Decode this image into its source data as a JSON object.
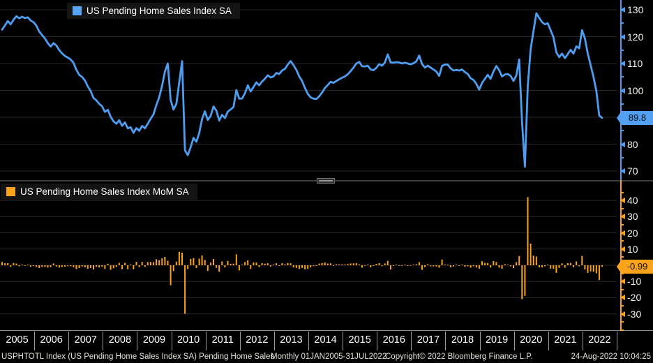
{
  "colors": {
    "background": "#000000",
    "line_blue": "#4e9df0",
    "bar_orange": "#fba31b",
    "grid": "#282828",
    "axis_text": "#f4f1e8",
    "badge_text_dark": "#0a0f14"
  },
  "top_panel": {
    "legend": "US Pending Home Sales Index SA"
  },
  "bottom_panel": {
    "legend": "US Pending Home Sales Index MoM SA"
  },
  "footer": {
    "description": "USPHTOTL Index (US Pending Home Sales Index SA) Pending Home Sales",
    "range": "Monthly 01JAN2005-31JUL2022",
    "copyright": "Copyright© 2022 Bloomberg Finance L.P.",
    "timestamp": "24-Aug-2022 10:04:25"
  },
  "x_years": [
    "2005",
    "2006",
    "2007",
    "2008",
    "2009",
    "2010",
    "2011",
    "2012",
    "2013",
    "2014",
    "2015",
    "2016",
    "2017",
    "2018",
    "2019",
    "2020",
    "2021",
    "2022"
  ],
  "chart_data": [
    {
      "type": "line",
      "title": "US Pending Home Sales Index SA",
      "x_start": "2005-01",
      "x_end": "2022-07",
      "frequency": "monthly",
      "axis_ticks": [
        130,
        120,
        110,
        100,
        90,
        80,
        70
      ],
      "ylim": [
        66.5,
        133.6
      ],
      "minor_tick_step": 5,
      "grid": true,
      "legend_position": "top-left",
      "last_label": "89.8",
      "color": "#4e9df0",
      "values": [
        122.6,
        124.2,
        125.8,
        124.6,
        126.3,
        127.6,
        126.8,
        127.4,
        126.9,
        127.2,
        126.0,
        125.4,
        124.1,
        121.9,
        120.6,
        119.3,
        117.6,
        116.3,
        117.6,
        116.7,
        115.0,
        113.8,
        112.8,
        112.2,
        111.5,
        110.2,
        107.6,
        105.8,
        105.0,
        103.7,
        101.5,
        99.8,
        97.2,
        96.3,
        95.0,
        94.1,
        92.0,
        92.8,
        90.2,
        88.5,
        87.6,
        88.9,
        86.8,
        88.1,
        85.9,
        86.3,
        84.2,
        86.0,
        85.0,
        86.8,
        85.9,
        87.6,
        89.4,
        91.1,
        94.5,
        97.5,
        101.7,
        107.0,
        110.0,
        96.4,
        92.9,
        95.0,
        102.9,
        110.9,
        77.7,
        75.9,
        78.9,
        82.3,
        80.9,
        84.2,
        89.3,
        92.2,
        89.0,
        90.5,
        94.0,
        92.5,
        88.8,
        90.9,
        89.7,
        92.1,
        92.9,
        93.8,
        100.1,
        96.9,
        97.0,
        98.9,
        101.9,
        99.6,
        101.3,
        103.0,
        101.9,
        103.3,
        104.3,
        105.6,
        104.8,
        105.2,
        106.5,
        106.1,
        107.4,
        108.0,
        109.6,
        110.9,
        109.4,
        107.6,
        105.2,
        103.5,
        100.9,
        98.7,
        97.4,
        96.9,
        96.8,
        97.8,
        99.2,
        100.9,
        102.0,
        103.2,
        102.8,
        103.5,
        104.1,
        104.7,
        105.2,
        106.0,
        107.2,
        108.5,
        110.0,
        110.6,
        109.0,
        108.9,
        109.2,
        107.8,
        107.5,
        108.4,
        109.8,
        109.2,
        110.4,
        113.4,
        110.4,
        110.3,
        110.5,
        110.4,
        110.0,
        110.3,
        110.0,
        109.7,
        110.1,
        110.8,
        113.0,
        109.8,
        108.5,
        109.2,
        108.5,
        107.8,
        107.0,
        105.4,
        109.1,
        109.6,
        109.6,
        108.2,
        107.4,
        107.6,
        107.4,
        107.8,
        106.8,
        106.1,
        104.5,
        103.9,
        102.4,
        100.3,
        102.8,
        104.3,
        105.8,
        104.3,
        107.0,
        109.1,
        107.5,
        105.2,
        105.9,
        106.1,
        105.4,
        103.5,
        105.5,
        111.5,
        88.2,
        71.6,
        101.7,
        115.3,
        122.1,
        128.7,
        127.0,
        125.4,
        124.6,
        125.0,
        122.4,
        119.8,
        114.2,
        112.4,
        113.7,
        112.0,
        113.5,
        115.1,
        113.7,
        116.4,
        115.7,
        122.4,
        119.3,
        113.7,
        109.4,
        105.0,
        99.8,
        90.7,
        89.8
      ]
    },
    {
      "type": "bar",
      "title": "US Pending Home Sales Index MoM SA",
      "x_start": "2005-01",
      "x_end": "2022-07",
      "frequency": "monthly",
      "axis_ticks": [
        40,
        30,
        20,
        10,
        -10,
        -20,
        -30
      ],
      "ylim": [
        -40.5,
        45.5
      ],
      "minor_tick_step": 5,
      "grid": true,
      "legend_position": "top-left",
      "last_label": "-0.99",
      "color": "#fba31b",
      "values": [
        2.0,
        1.31,
        1.29,
        -0.95,
        1.36,
        1.03,
        -0.63,
        0.47,
        -0.39,
        0.24,
        -0.94,
        -0.48,
        -1.04,
        -1.77,
        -1.07,
        -1.08,
        -1.42,
        -1.11,
        1.12,
        -0.77,
        -1.46,
        -1.04,
        -0.88,
        -0.53,
        -0.62,
        -1.17,
        -2.36,
        -1.67,
        -0.76,
        -1.24,
        -2.12,
        -1.67,
        -2.61,
        -0.93,
        -1.35,
        -0.95,
        -2.23,
        0.87,
        -2.8,
        -1.88,
        -1.02,
        1.48,
        -2.36,
        1.5,
        -2.5,
        0.47,
        -2.43,
        2.14,
        -1.16,
        2.12,
        -1.04,
        1.98,
        2.05,
        1.9,
        3.73,
        3.17,
        4.31,
        5.21,
        2.8,
        -12.36,
        -3.63,
        2.26,
        8.32,
        7.77,
        -29.94,
        -2.32,
        3.95,
        4.31,
        -1.7,
        4.08,
        6.06,
        3.25,
        -3.47,
        1.69,
        3.87,
        -1.6,
        -4.0,
        2.36,
        -1.32,
        2.68,
        0.87,
        0.97,
        6.72,
        -3.2,
        0.1,
        1.96,
        3.03,
        -2.26,
        1.71,
        1.68,
        -1.07,
        1.37,
        0.97,
        1.25,
        -0.76,
        0.38,
        1.24,
        -0.38,
        1.23,
        0.56,
        1.48,
        1.19,
        -1.35,
        -1.64,
        -2.23,
        -1.62,
        -2.51,
        -2.18,
        -1.32,
        -0.51,
        -0.1,
        1.03,
        1.43,
        1.71,
        1.09,
        1.18,
        -0.39,
        0.68,
        0.58,
        0.58,
        0.48,
        0.76,
        1.13,
        1.21,
        1.38,
        0.55,
        -1.45,
        -0.09,
        0.28,
        -1.28,
        -0.28,
        0.84,
        1.29,
        -0.55,
        1.1,
        2.72,
        -2.65,
        -0.09,
        0.18,
        -0.09,
        -0.36,
        0.27,
        -0.27,
        -0.27,
        0.36,
        0.64,
        1.99,
        -2.83,
        -1.18,
        0.65,
        -0.64,
        -0.65,
        -0.74,
        -1.5,
        3.51,
        0.46,
        0.0,
        -1.28,
        -0.74,
        0.19,
        -0.19,
        0.37,
        -0.93,
        -0.66,
        -1.51,
        -0.57,
        -1.44,
        -2.05,
        2.49,
        1.46,
        1.44,
        -1.42,
        2.59,
        1.96,
        -1.47,
        -2.14,
        0.67,
        0.19,
        -0.66,
        -1.8,
        1.93,
        5.69,
        -20.9,
        -18.82,
        42.04,
        13.37,
        5.9,
        5.41,
        -1.32,
        -1.26,
        -0.64,
        0.32,
        -2.08,
        -2.12,
        -4.67,
        -1.58,
        1.16,
        -1.5,
        1.34,
        1.41,
        -1.22,
        2.37,
        -0.6,
        5.79,
        -2.53,
        -4.69,
        -3.78,
        -4.02,
        -4.95,
        -9.12,
        -0.99
      ]
    }
  ]
}
